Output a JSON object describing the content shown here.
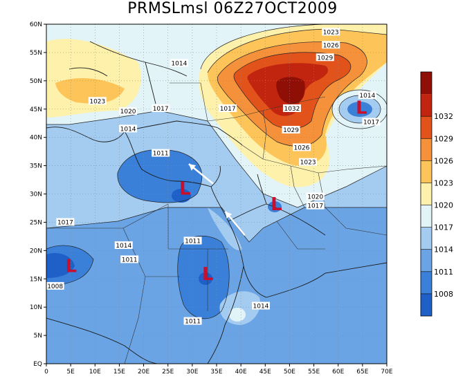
{
  "title": "PRMSLmsl 06Z27OCT2009",
  "map": {
    "lat_ticks": [
      "EQ",
      "5N",
      "10N",
      "15N",
      "20N",
      "25N",
      "30N",
      "35N",
      "40N",
      "45N",
      "50N",
      "55N",
      "60N"
    ],
    "lon_ticks": [
      "0",
      "5E",
      "10E",
      "15E",
      "20E",
      "25E",
      "30E",
      "35E",
      "40E",
      "45E",
      "50E",
      "55E",
      "60E",
      "65E",
      "70E"
    ],
    "isobar_labels": [
      {
        "text": "1023",
        "lon": 58.5,
        "lat": 58.6
      },
      {
        "text": "1026",
        "lon": 58.5,
        "lat": 56.3
      },
      {
        "text": "1029",
        "lon": 57.3,
        "lat": 54.1
      },
      {
        "text": "1014",
        "lon": 27.3,
        "lat": 53.1
      },
      {
        "text": "1014",
        "lon": 66.0,
        "lat": 47.4
      },
      {
        "text": "1023",
        "lon": 10.5,
        "lat": 46.4
      },
      {
        "text": "1020",
        "lon": 16.8,
        "lat": 44.6
      },
      {
        "text": "1017",
        "lon": 23.5,
        "lat": 45.1
      },
      {
        "text": "1017",
        "lon": 37.3,
        "lat": 45.1
      },
      {
        "text": "1032",
        "lon": 50.5,
        "lat": 45.1
      },
      {
        "text": "1017",
        "lon": 66.8,
        "lat": 42.7
      },
      {
        "text": "1014",
        "lon": 16.8,
        "lat": 41.5
      },
      {
        "text": "1029",
        "lon": 50.3,
        "lat": 41.3
      },
      {
        "text": "1026",
        "lon": 52.5,
        "lat": 38.2
      },
      {
        "text": "1011",
        "lon": 23.5,
        "lat": 37.2
      },
      {
        "text": "1023",
        "lon": 53.8,
        "lat": 35.6
      },
      {
        "text": "1020",
        "lon": 55.3,
        "lat": 29.5
      },
      {
        "text": "1017",
        "lon": 55.3,
        "lat": 27.9
      },
      {
        "text": "1017",
        "lon": 3.9,
        "lat": 25.0
      },
      {
        "text": "1011",
        "lon": 30.1,
        "lat": 21.7
      },
      {
        "text": "1014",
        "lon": 15.9,
        "lat": 20.9
      },
      {
        "text": "1011",
        "lon": 17.1,
        "lat": 18.4
      },
      {
        "text": "1008",
        "lon": 1.8,
        "lat": 13.7
      },
      {
        "text": "1014",
        "lon": 44.1,
        "lat": 10.2
      },
      {
        "text": "1011",
        "lon": 30.1,
        "lat": 7.5
      }
    ],
    "lows": [
      {
        "symbol": "L",
        "lon": 28.5,
        "lat": 31.0
      },
      {
        "symbol": "L",
        "lon": 47.3,
        "lat": 28.2
      },
      {
        "symbol": "L",
        "lon": 5.1,
        "lat": 17.3
      },
      {
        "symbol": "L",
        "lon": 33.2,
        "lat": 15.9
      },
      {
        "symbol": "L",
        "lon": 64.8,
        "lat": 45.3
      }
    ],
    "wind_arrows": [
      {
        "from_lon": 34.3,
        "from_lat": 31.8,
        "to_lon": 29.3,
        "to_lat": 35.3
      },
      {
        "from_lon": 40.8,
        "from_lat": 22.7,
        "to_lon": 36.8,
        "to_lat": 26.9
      }
    ]
  },
  "colorbar": {
    "colors": [
      "#1e5fc8",
      "#3a7fd8",
      "#6aa4e4",
      "#a4cbf0",
      "#e2f4f8",
      "#fdf1ab",
      "#fdc45a",
      "#f5913a",
      "#e2531c",
      "#c2250f",
      "#8f0e05"
    ],
    "labels": [
      "1008",
      "1011",
      "1014",
      "1017",
      "1020",
      "1023",
      "1026",
      "1029",
      "1032"
    ]
  }
}
